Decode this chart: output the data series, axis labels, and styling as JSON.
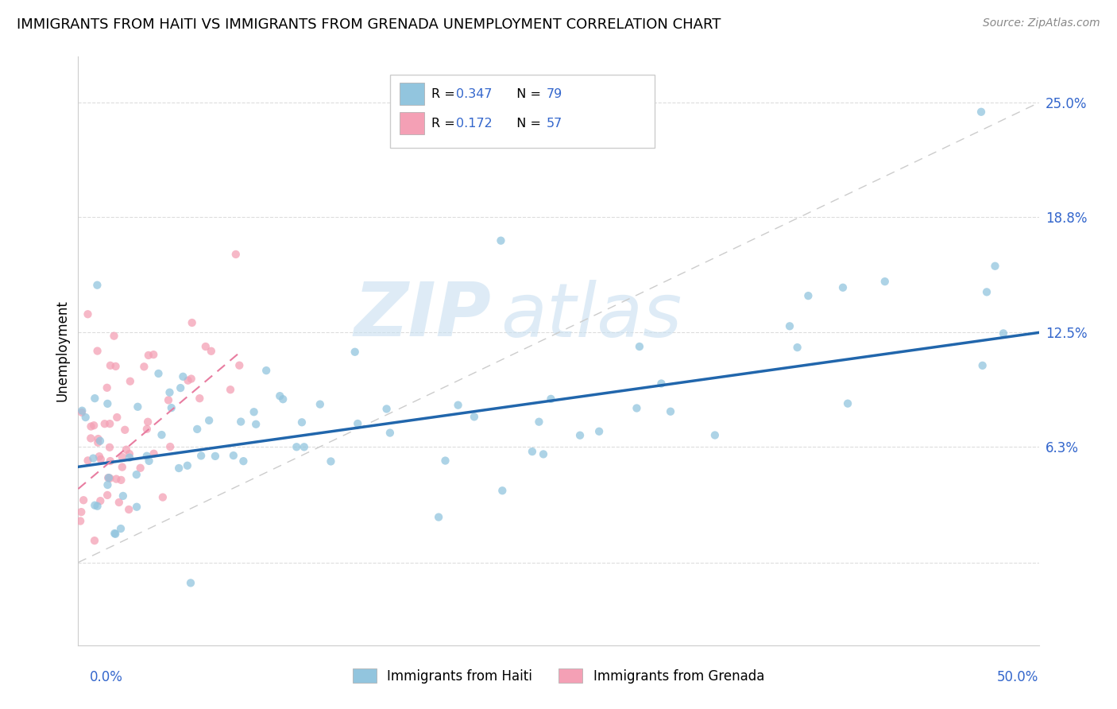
{
  "title": "IMMIGRANTS FROM HAITI VS IMMIGRANTS FROM GRENADA UNEMPLOYMENT CORRELATION CHART",
  "source": "Source: ZipAtlas.com",
  "ylabel": "Unemployment",
  "y_ticks": [
    0.0,
    0.063,
    0.125,
    0.188,
    0.25
  ],
  "y_tick_labels": [
    "",
    "6.3%",
    "12.5%",
    "18.8%",
    "25.0%"
  ],
  "x_range": [
    0.0,
    0.5
  ],
  "y_range": [
    -0.045,
    0.275
  ],
  "haiti_R": 0.347,
  "haiti_N": 79,
  "grenada_R": 0.172,
  "grenada_N": 57,
  "haiti_color": "#92c5de",
  "grenada_color": "#f4a0b5",
  "haiti_line_color": "#2166ac",
  "grenada_line_color": "#e87ca0",
  "diagonal_color": "#cccccc",
  "watermark_zip": "ZIP",
  "watermark_atlas": "atlas",
  "legend_label_haiti": "Immigrants from Haiti",
  "legend_label_grenada": "Immigrants from Grenada",
  "haiti_trend_x0": 0.0,
  "haiti_trend_y0": 0.052,
  "haiti_trend_x1": 0.5,
  "haiti_trend_y1": 0.125,
  "grenada_trend_x0": 0.0,
  "grenada_trend_y0": 0.04,
  "grenada_trend_x1": 0.085,
  "grenada_trend_y1": 0.115
}
